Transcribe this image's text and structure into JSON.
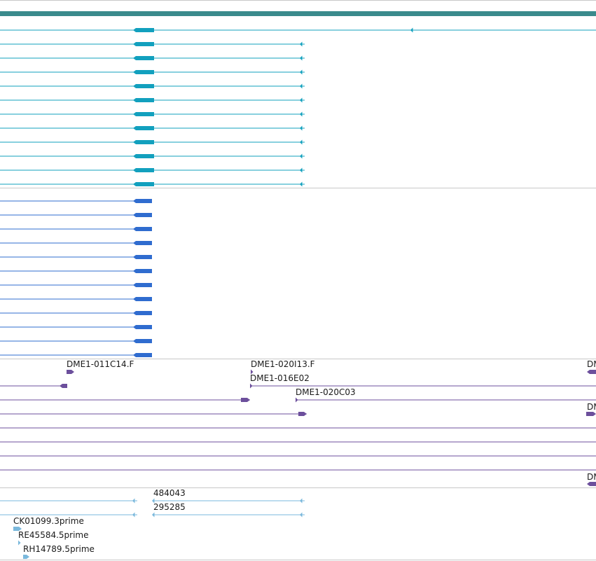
{
  "colors": {
    "ruler": "#3a8a8c",
    "track1": "#12a0be",
    "track2": "#2f6ccf",
    "track3": "#6c4f9c",
    "track4": "#7ab8dc",
    "separator": "#c8c8c8",
    "text": "#1a1a1a"
  },
  "track3": {
    "labels": {
      "dme1_011c14_f": "DME1-011C14.F",
      "dme1_020i13_f": "DME1-020I13.F",
      "dme1_016e02": "DME1-016E02",
      "dme1_020c03": "DME1-020C03",
      "dm_a": "DM",
      "dm_b": "DM",
      "dm_c": "DM"
    }
  },
  "track4": {
    "labels": {
      "n484043": "484043",
      "n295285": "295285",
      "ck01099": "CK01099.3prime",
      "re45584": "RE45584.5prime",
      "rh14789": "RH14789.5prime"
    }
  }
}
